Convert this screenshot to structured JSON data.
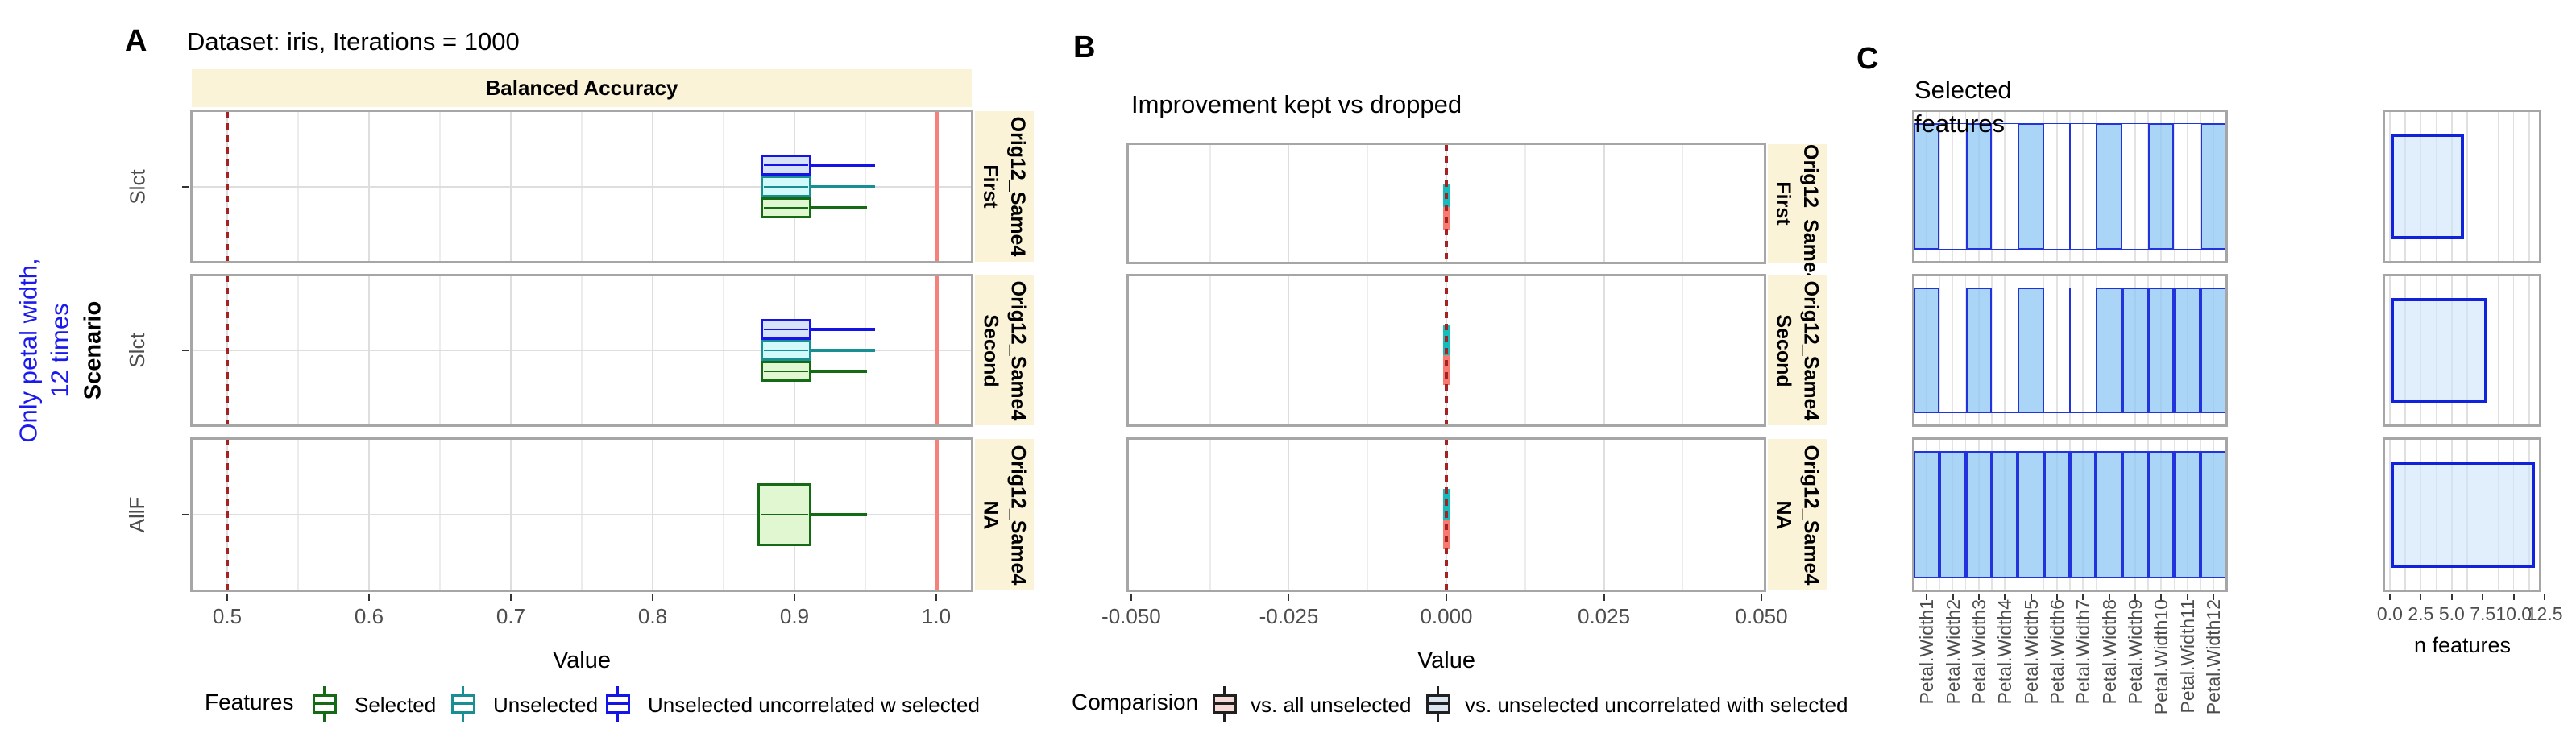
{
  "figure": {
    "left_annotation": {
      "line1": "Only petal width,",
      "line2": "12 times",
      "color": "#1a1aee"
    }
  },
  "colors": {
    "strip_bg": "#FBF3D8",
    "panel_border": "#A6A6A6",
    "grid_major": "#DEDEDE",
    "grid_minor": "#ECECEC",
    "dotted_ref": "#A52222",
    "solid_ref": "#F5827A",
    "axis_text": "#4D4D4D",
    "c_bar_fill": "rgba(142,199,244,0.75)",
    "c_bar_stroke": "#2233DD",
    "c_box_stroke": "#1122DD",
    "c_box_fill": "rgba(205,228,250,0.6)",
    "series": {
      "selected": {
        "stroke": "#156B15",
        "fill": "#E0F7D1"
      },
      "unselected": {
        "stroke": "#178F93",
        "fill": "#D3FAFA"
      },
      "unselected_uncorrelated": {
        "stroke": "#1414E8",
        "fill": "#D6E2F8"
      },
      "vs_all_unselected": {
        "stroke": "#F8796F",
        "fill": "#F8796F",
        "legend_fill": "#F7D9D6",
        "legend_stroke": "#202020"
      },
      "vs_unselected_uncorrelated": {
        "stroke": "#15BCBE",
        "fill": "#15BCBE",
        "legend_fill": "#DBE6F1",
        "legend_stroke": "#202020"
      }
    }
  },
  "chart_data": [
    {
      "id": "A",
      "type": "boxplot-horizontal-faceted",
      "panel_letter": "A",
      "title": "Dataset: iris, Iterations = 1000",
      "col_strip": "Balanced Accuracy",
      "y_axis_title": "Scenario",
      "xlabel": "Value",
      "x_ticks": [
        "0.5",
        "0.6",
        "0.7",
        "0.8",
        "0.9",
        "1.0"
      ],
      "x_tick_values": [
        0.5,
        0.6,
        0.7,
        0.8,
        0.9,
        1.0
      ],
      "x_minor": [
        0.55,
        0.65,
        0.75,
        0.85,
        0.95
      ],
      "xlim": [
        0.475,
        1.025
      ],
      "ref_line_dotted": 0.5,
      "ref_line_solid": 1.0,
      "rows": [
        {
          "row_label": "Slct",
          "strip_line1": "Orig12_Same4",
          "strip_line2": "First",
          "boxes": [
            {
              "series": "unselected_uncorrelated",
              "q1": 0.876,
              "q3": 0.912,
              "whisker_high": 0.957,
              "band": [
                0.29,
                0.43
              ]
            },
            {
              "series": "unselected",
              "q1": 0.876,
              "q3": 0.912,
              "whisker_high": 0.957,
              "band": [
                0.43,
                0.57
              ]
            },
            {
              "series": "selected",
              "q1": 0.876,
              "q3": 0.912,
              "whisker_high": 0.951,
              "band": [
                0.57,
                0.71
              ]
            }
          ]
        },
        {
          "row_label": "Slct",
          "strip_line1": "Orig12_Same4",
          "strip_line2": "Second",
          "boxes": [
            {
              "series": "unselected_uncorrelated",
              "q1": 0.876,
              "q3": 0.912,
              "whisker_high": 0.957,
              "band": [
                0.29,
                0.43
              ]
            },
            {
              "series": "unselected",
              "q1": 0.876,
              "q3": 0.912,
              "whisker_high": 0.957,
              "band": [
                0.43,
                0.57
              ]
            },
            {
              "series": "selected",
              "q1": 0.876,
              "q3": 0.912,
              "whisker_high": 0.951,
              "band": [
                0.57,
                0.71
              ]
            }
          ]
        },
        {
          "row_label": "AllF",
          "strip_line1": "Orig12_Same4",
          "strip_line2": "NA",
          "boxes": [
            {
              "series": "selected",
              "q1": 0.874,
              "q3": 0.912,
              "whisker_high": 0.951,
              "band": [
                0.29,
                0.71
              ]
            }
          ]
        }
      ],
      "legend": {
        "title": "Features",
        "entries": [
          {
            "label": "Selected",
            "series": "selected"
          },
          {
            "label": "Unselected",
            "series": "unselected"
          },
          {
            "label": "Unselected uncorrelated w selected",
            "series": "unselected_uncorrelated"
          }
        ]
      }
    },
    {
      "id": "B",
      "type": "boxplot-faceted",
      "panel_letter": "B",
      "title": "Improvement kept vs dropped",
      "xlabel": "Value",
      "x_ticks": [
        "-0.050",
        "-0.025",
        "0.000",
        "0.025",
        "0.050"
      ],
      "x_tick_values": [
        -0.05,
        -0.025,
        0,
        0.025,
        0.05
      ],
      "x_minor": [
        -0.0375,
        -0.0125,
        0.0125,
        0.0375
      ],
      "xlim": [
        -0.0505,
        0.0505
      ],
      "ref_line_dotted": 0,
      "rows": [
        {
          "strip_line1": "Orig12_Same4",
          "strip_line2": "First",
          "bars": [
            {
              "series": "vs_unselected_uncorrelated",
              "center": 0,
              "band": [
                0.33,
                0.53
              ]
            },
            {
              "series": "vs_all_unselected",
              "center": 0,
              "band": [
                0.53,
                0.73
              ]
            }
          ]
        },
        {
          "strip_line1": "Orig12_Same4",
          "strip_line2": "Second",
          "bars": [
            {
              "series": "vs_unselected_uncorrelated",
              "center": 0,
              "band": [
                0.33,
                0.53
              ]
            },
            {
              "series": "vs_all_unselected",
              "center": 0,
              "band": [
                0.53,
                0.73
              ]
            }
          ]
        },
        {
          "strip_line1": "Orig12_Same4",
          "strip_line2": "NA",
          "bars": [
            {
              "series": "vs_unselected_uncorrelated",
              "center": 0,
              "band": [
                0.33,
                0.53
              ]
            },
            {
              "series": "vs_all_unselected",
              "center": 0,
              "band": [
                0.53,
                0.73
              ]
            }
          ]
        }
      ],
      "legend": {
        "title": "Comparision",
        "entries": [
          {
            "label": "vs. all unselected",
            "series": "vs_all_unselected"
          },
          {
            "label": "vs. unselected uncorrelated with selected",
            "series": "vs_unselected_uncorrelated"
          }
        ]
      }
    },
    {
      "id": "C",
      "type": "bar",
      "panel_letter": "C",
      "title_line1": "Selected",
      "title_line2": "features",
      "categories": [
        "Petal.Width1",
        "Petal.Width2",
        "Petal.Width3",
        "Petal.Width4",
        "Petal.Width5",
        "Petal.Width6",
        "Petal.Width7",
        "Petal.Width8",
        "Petal.Width9",
        "Petal.Width10",
        "Petal.Width11",
        "Petal.Width12"
      ],
      "bar_value": 1,
      "rows": [
        {
          "selected": [
            1,
            3,
            5,
            8,
            10,
            12
          ],
          "n_selected": 6,
          "n_features_box": [
            0.1,
            6.0
          ]
        },
        {
          "selected": [
            1,
            3,
            5,
            8,
            9,
            10,
            11,
            12
          ],
          "n_selected": 8,
          "n_features_box": [
            0.1,
            7.9
          ]
        },
        {
          "selected": [
            1,
            2,
            3,
            4,
            5,
            6,
            7,
            8,
            9,
            10,
            11,
            12
          ],
          "n_selected": 12,
          "n_features_box": [
            0.1,
            11.7
          ]
        }
      ],
      "n_axis": {
        "label": "n features",
        "ticks": [
          "0.0",
          "2.5",
          "5.0",
          "7.5",
          "10.0",
          "12.5"
        ],
        "tick_values": [
          0,
          2.5,
          5,
          7.5,
          10,
          12.5
        ],
        "lim": [
          -0.45,
          12.1
        ]
      }
    }
  ]
}
